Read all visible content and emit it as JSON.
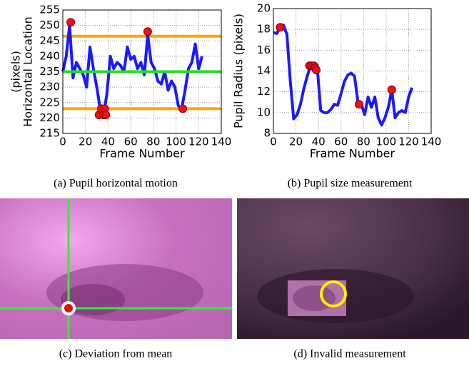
{
  "chart_data": [
    {
      "type": "line",
      "caption": "(a) Pupil horizontal motion",
      "xlabel": "Frame Number",
      "ylabel": [
        "Horizontal Location",
        "(pixels)"
      ],
      "xlim": [
        0,
        140
      ],
      "xticks": [
        0,
        20,
        40,
        60,
        80,
        100,
        120,
        140
      ],
      "ylim": [
        215,
        255
      ],
      "yticks": [
        215,
        220,
        225,
        230,
        235,
        240,
        245,
        250,
        255
      ],
      "grid": true,
      "x": [
        0,
        3,
        6,
        9,
        12,
        15,
        18,
        21,
        24,
        27,
        30,
        33,
        36,
        39,
        42,
        45,
        48,
        51,
        54,
        57,
        60,
        63,
        66,
        69,
        72,
        75,
        78,
        81,
        84,
        87,
        90,
        93,
        96,
        99,
        102,
        105,
        108,
        111,
        114,
        117,
        120,
        123
      ],
      "series": [
        {
          "color": "#1a1aff",
          "values": [
            235,
            240,
            250,
            233,
            238,
            236,
            234,
            230,
            243,
            236,
            230,
            223,
            221,
            228,
            240,
            236,
            238,
            237,
            235,
            243,
            239,
            240,
            236,
            238,
            234,
            247,
            238,
            236,
            232,
            231,
            235,
            229,
            232,
            230,
            224,
            223,
            229,
            236,
            238,
            244,
            236,
            240
          ]
        }
      ],
      "hlines": [
        {
          "value": 246.5,
          "color": "#ffa500"
        },
        {
          "value": 235,
          "color": "#22dd22"
        },
        {
          "value": 223,
          "color": "#ffa500"
        }
      ],
      "markers": {
        "color": "#ee1111",
        "x": [
          7,
          32,
          34,
          36,
          37,
          38,
          75,
          106
        ],
        "y": [
          251,
          221,
          223,
          221,
          223,
          221,
          248,
          223
        ]
      }
    },
    {
      "type": "line",
      "caption": "(b) Pupil size measurement",
      "xlabel": "Frame Number",
      "ylabel": [
        "Pupil Radius (pixels)"
      ],
      "xlim": [
        0,
        140
      ],
      "xticks": [
        0,
        20,
        40,
        60,
        80,
        100,
        120,
        140
      ],
      "ylim": [
        8,
        20
      ],
      "yticks": [
        8,
        10,
        12,
        14,
        16,
        18,
        20
      ],
      "grid": true,
      "x": [
        0,
        3,
        6,
        9,
        12,
        15,
        18,
        21,
        24,
        27,
        30,
        33,
        36,
        39,
        42,
        45,
        48,
        51,
        54,
        57,
        60,
        63,
        66,
        69,
        72,
        75,
        78,
        81,
        84,
        87,
        90,
        93,
        96,
        99,
        102,
        105,
        108,
        111,
        114,
        117,
        120,
        123
      ],
      "series": [
        {
          "color": "#1a1aff",
          "values": [
            17.7,
            17.6,
            18.2,
            18.4,
            17.5,
            13,
            9.4,
            9.8,
            10.8,
            12.3,
            13.5,
            14.5,
            14.5,
            14.2,
            10.2,
            10,
            10,
            10.3,
            10.8,
            10.7,
            11.8,
            13,
            13.6,
            13.8,
            13.5,
            11,
            10.8,
            9.8,
            11.5,
            10.5,
            11.5,
            9.5,
            8.8,
            9.5,
            10.5,
            12.2,
            9.5,
            10,
            10.2,
            10,
            11.5,
            12.4
          ]
        }
      ],
      "markers": {
        "color": "#ee1111",
        "x": [
          6,
          32,
          34,
          36,
          37,
          38,
          76,
          105
        ],
        "y": [
          18.2,
          14.5,
          14.5,
          14.5,
          14.3,
          14.1,
          10.8,
          12.2
        ]
      }
    }
  ],
  "panels": [
    {
      "caption": "(c) Deviation from mean"
    },
    {
      "caption": "(d) Invalid measurement"
    }
  ]
}
